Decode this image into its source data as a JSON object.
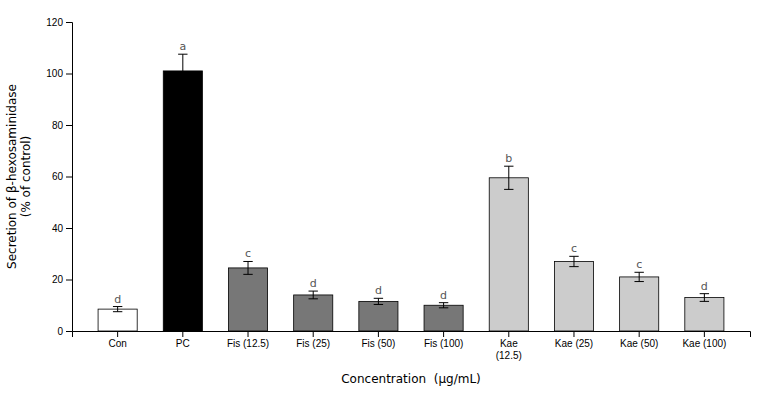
{
  "chart_data": {
    "type": "bar",
    "categories": [
      "Con",
      "PC",
      "Fis (12.5)",
      "Fis (25)",
      "Fis (50)",
      "Fis (100)",
      "Kae\n(12.5)",
      "Kae (25)",
      "Kae (50)",
      "Kae (100)"
    ],
    "values": [
      8.5,
      101.0,
      24.5,
      14.0,
      11.5,
      10.0,
      59.5,
      27.0,
      21.0,
      13.0
    ],
    "errors": [
      1.0,
      6.5,
      2.5,
      1.5,
      1.2,
      1.0,
      4.5,
      2.0,
      1.8,
      1.5
    ],
    "annotations": [
      "d",
      "a",
      "c",
      "d",
      "d",
      "d",
      "b",
      "c",
      "c",
      "d"
    ],
    "colors": [
      "#ffffff",
      "#000000",
      "#777777",
      "#777777",
      "#777777",
      "#777777",
      "#cccccc",
      "#cccccc",
      "#cccccc",
      "#cccccc"
    ],
    "ylabel": "Secretion of β-hexosaminidase\n(% of control)",
    "xlabel": "Concentration  (μg/mL)",
    "ylim": [
      0,
      120
    ],
    "yticks": [
      0,
      20,
      40,
      60,
      80,
      100,
      120
    ],
    "grid": false
  }
}
